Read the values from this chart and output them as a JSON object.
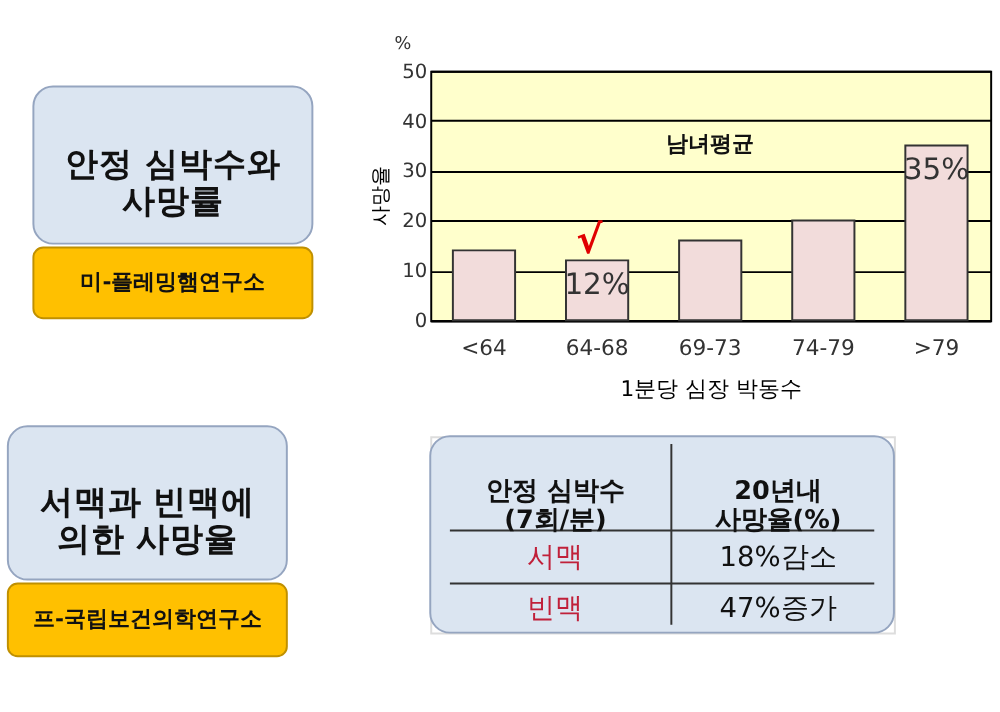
{
  "chart_data": [
    {
      "type": "bar",
      "title": "안정 심박수와\n사망률",
      "xlabel": "1분당 심장 박동수",
      "ylabel": "사망율",
      "categories": [
        "<64",
        "64-68",
        "69-73",
        "74-79",
        ">79"
      ],
      "values": [
        14,
        12,
        16,
        20,
        35
      ],
      "value_labels": [
        null,
        "12%",
        null,
        null,
        "35%"
      ],
      "color": "#f2dcdb",
      "ylim": [
        0,
        50
      ],
      "yticks": [
        0,
        10,
        20,
        30,
        40,
        50
      ],
      "grid": "y",
      "annotations": [
        "%",
        "남녀평균",
        {
          "text": "√",
          "x": "64-68",
          "y": 12
        },
        "미-플레밍햄연구소"
      ]
    },
    {
      "type": "other",
      "title": "서맥과 빈맥에\n의한  사망율",
      "annotations": [
        "안정 심박수\n(7회/분)",
        "20년내\n사망율(%)",
        "서맥",
        "18%감소",
        "빈맥",
        "47%증가",
        "프-국립보건의학연구소"
      ]
    }
  ]
}
